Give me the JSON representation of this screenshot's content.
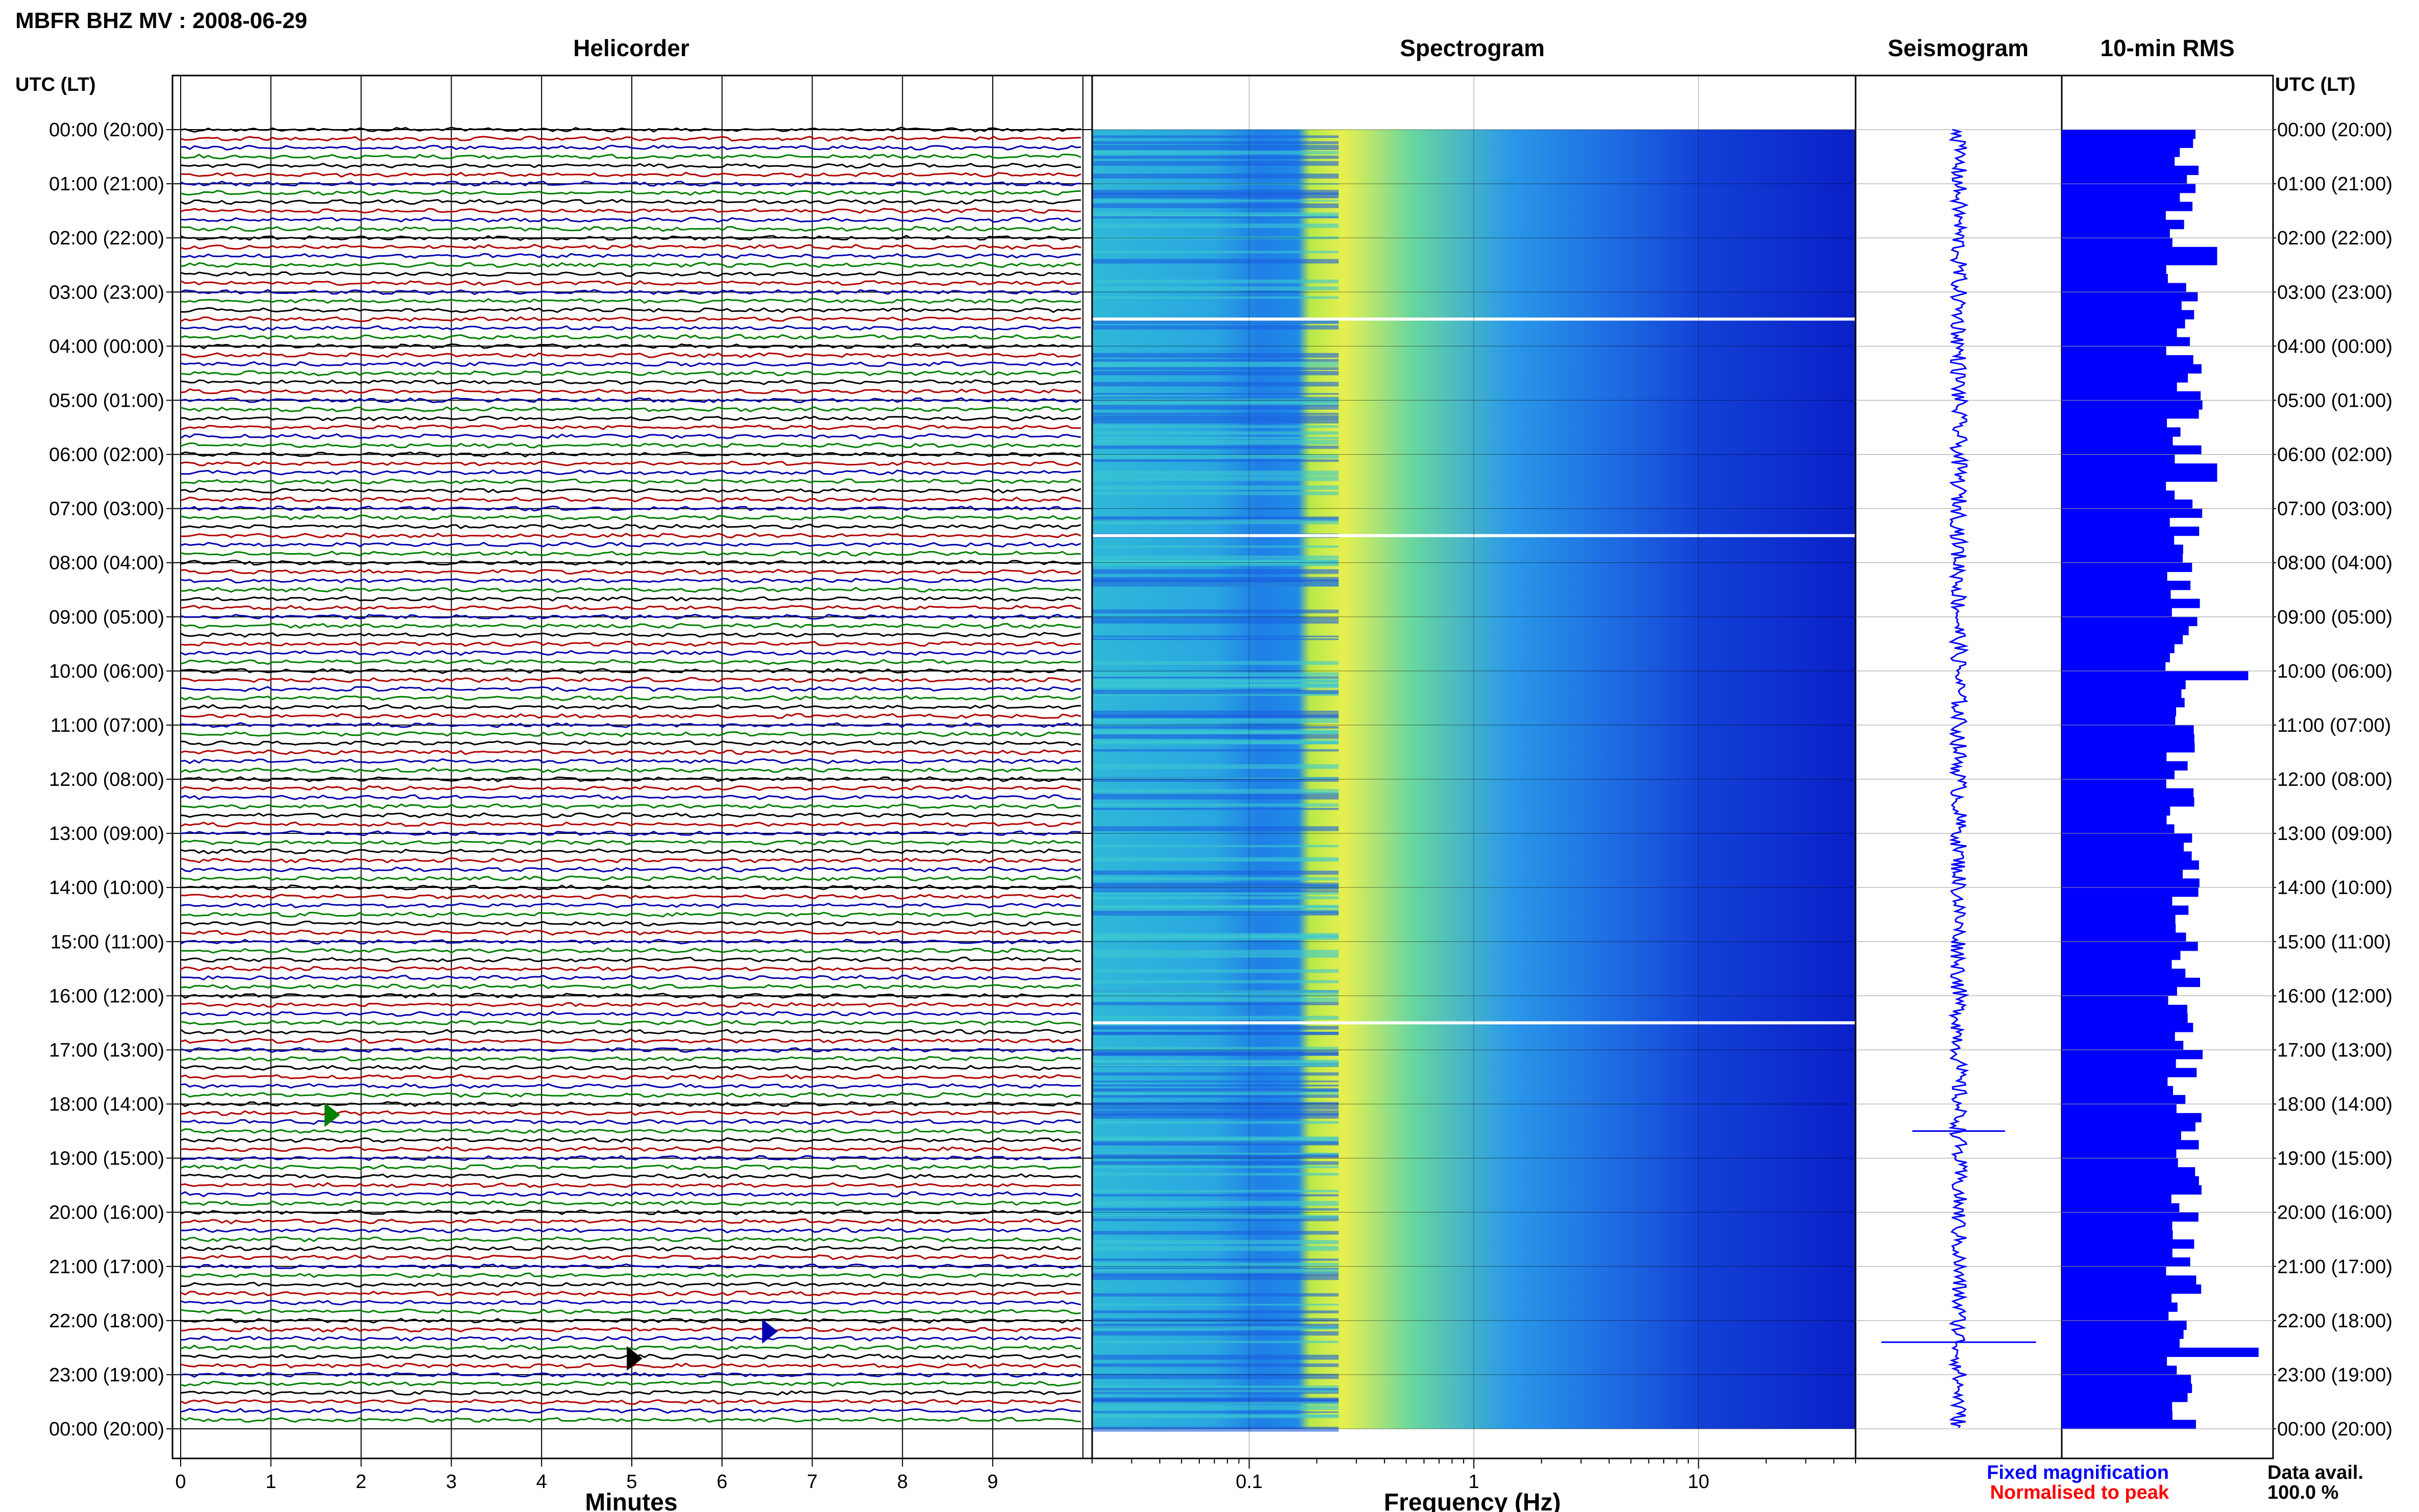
{
  "title": "MBFR BHZ MV : 2008-06-29",
  "utc_header": "UTC (LT)",
  "footer": {
    "fixed_label": "Fixed magnification",
    "fixed_color": "#0000ff",
    "norm_label": "Normalised to peak",
    "norm_color": "#ff0000",
    "avail_label": "Data avail.",
    "avail_value": "100.0 %"
  },
  "time_labels": [
    "00:00 (20:00)",
    "01:00 (21:00)",
    "02:00 (22:00)",
    "03:00 (23:00)",
    "04:00 (00:00)",
    "05:00 (01:00)",
    "06:00 (02:00)",
    "07:00 (03:00)",
    "08:00 (04:00)",
    "09:00 (05:00)",
    "10:00 (06:00)",
    "11:00 (07:00)",
    "12:00 (08:00)",
    "13:00 (09:00)",
    "14:00 (10:00)",
    "15:00 (11:00)",
    "16:00 (12:00)",
    "17:00 (13:00)",
    "18:00 (14:00)",
    "19:00 (15:00)",
    "20:00 (16:00)",
    "21:00 (17:00)",
    "22:00 (18:00)",
    "23:00 (19:00)",
    "00:00 (20:00)"
  ],
  "chart_data": [
    {
      "type": "line",
      "title": "Helicorder",
      "xlabel": "Minutes",
      "x_ticks": [
        "0",
        "1",
        "2",
        "3",
        "4",
        "5",
        "6",
        "7",
        "8",
        "9"
      ],
      "xlim": [
        0,
        10
      ],
      "rows": 144,
      "trace_colors": [
        "#000000",
        "#b30000",
        "#0000b3",
        "#008000"
      ],
      "events": [
        {
          "hour": 18.2,
          "minute": 1.6,
          "color": "#008000"
        },
        {
          "hour": 22.2,
          "minute": 6.45,
          "color": "#0000b3"
        },
        {
          "hour": 22.7,
          "minute": 4.95,
          "color": "#000000"
        }
      ]
    },
    {
      "type": "heatmap",
      "title": "Spectrogram",
      "xlabel": "Frequency (Hz)",
      "x_ticks": [
        "0.1",
        "1",
        "10"
      ],
      "xlim": [
        0.02,
        50
      ],
      "x_scale": "log",
      "gaps_hours": [
        3.5,
        7.5,
        16.5
      ]
    },
    {
      "type": "line",
      "title": "Seismogram",
      "spikes": [
        {
          "hour": 18.5,
          "amplitude": 0.45
        },
        {
          "hour": 22.4,
          "amplitude": 0.75
        }
      ]
    },
    {
      "type": "bar",
      "title": "10-min RMS",
      "orientation": "horizontal",
      "bins": 144,
      "peaks": [
        {
          "hour": 10.0,
          "value": 0.9
        },
        {
          "hour": 22.5,
          "value": 0.95
        },
        {
          "hour": 6.2,
          "value": 0.75
        },
        {
          "hour": 2.3,
          "value": 0.75
        }
      ]
    }
  ]
}
